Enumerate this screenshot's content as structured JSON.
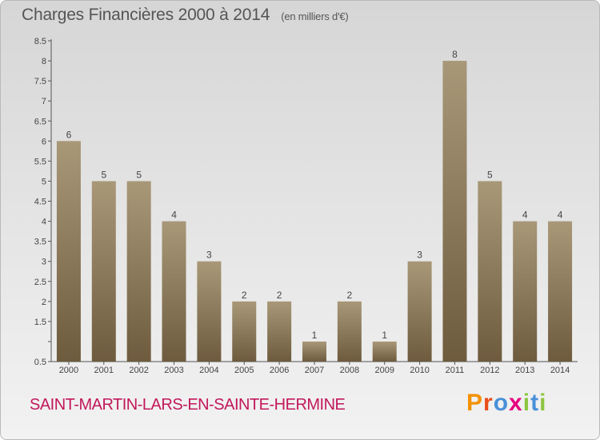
{
  "header": {
    "title": "Charges Financières 2000 à 2014",
    "subtitle": "(en milliers d'€)"
  },
  "footer": {
    "commune": "SAINT-MARTIN-LARS-EN-SAINTE-HERMINE",
    "logo": "Proxiti",
    "logo_colors": [
      "#f39200",
      "#e94e1b",
      "#4a90d9",
      "#e6007e",
      "#8cc63f",
      "#4a90d9",
      "#8cc63f"
    ]
  },
  "colors": {
    "bar_top": "#a89878",
    "bar_bottom": "#6e5b3e",
    "axis": "#555555",
    "title": "#555555",
    "commune": "#c2185b"
  },
  "chart_data": {
    "type": "bar",
    "title": "Charges Financières 2000 à 2014",
    "subtitle": "(en milliers d'€)",
    "xlabel": "",
    "ylabel": "",
    "categories": [
      "2000",
      "2001",
      "2002",
      "2003",
      "2004",
      "2005",
      "2006",
      "2007",
      "2008",
      "2009",
      "2010",
      "2011",
      "2012",
      "2013",
      "2014"
    ],
    "values": [
      6,
      5,
      5,
      4,
      3,
      2,
      2,
      1,
      2,
      1,
      3,
      8,
      5,
      4,
      4
    ],
    "data_labels": [
      "6",
      "5",
      "5",
      "4",
      "3",
      "2",
      "2",
      "1",
      "2",
      "1",
      "3",
      "8",
      "5",
      "4",
      "4"
    ],
    "ylim": [
      0.5,
      8.5
    ],
    "yticks": [
      0.5,
      1,
      1.5,
      2,
      2.5,
      3,
      3.5,
      4,
      4.5,
      5,
      5.5,
      6,
      6.5,
      7,
      7.5,
      8,
      8.5
    ],
    "ytick_labels": [
      "0.5",
      "",
      "1.5",
      "2",
      "2.5",
      "3",
      "3.5",
      "4",
      "4.5",
      "5",
      "5.5",
      "6",
      "6.5",
      "7",
      "7.5",
      "8",
      "8.5"
    ],
    "grid": false
  }
}
